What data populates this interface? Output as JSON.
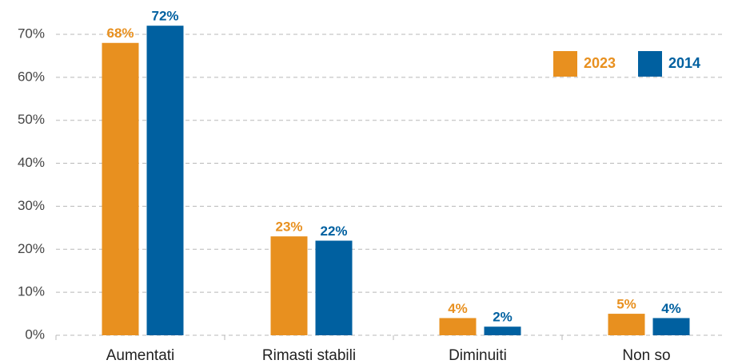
{
  "chart_data": {
    "type": "bar",
    "categories": [
      "Aumentati",
      "Rimasti stabili",
      "Diminuiti",
      "Non so"
    ],
    "series": [
      {
        "name": "2023",
        "color": "#e8901f",
        "values": [
          68,
          23,
          4,
          5
        ],
        "value_labels": [
          "68%",
          "23%",
          "4%",
          "5%"
        ]
      },
      {
        "name": "2014",
        "color": "#0060a0",
        "values": [
          72,
          22,
          2,
          4
        ],
        "value_labels": [
          "72%",
          "22%",
          "2%",
          "4%"
        ]
      }
    ],
    "ylim": [
      0,
      74
    ],
    "yticks": [
      {
        "value": 0,
        "label": "0%"
      },
      {
        "value": 10,
        "label": "10%"
      },
      {
        "value": 20,
        "label": "20%"
      },
      {
        "value": 30,
        "label": "30%"
      },
      {
        "value": 40,
        "label": "40%"
      },
      {
        "value": 50,
        "label": "50%"
      },
      {
        "value": 60,
        "label": "60%"
      },
      {
        "value": 70,
        "label": "70%"
      }
    ],
    "grid": true,
    "legend": "top-right"
  }
}
